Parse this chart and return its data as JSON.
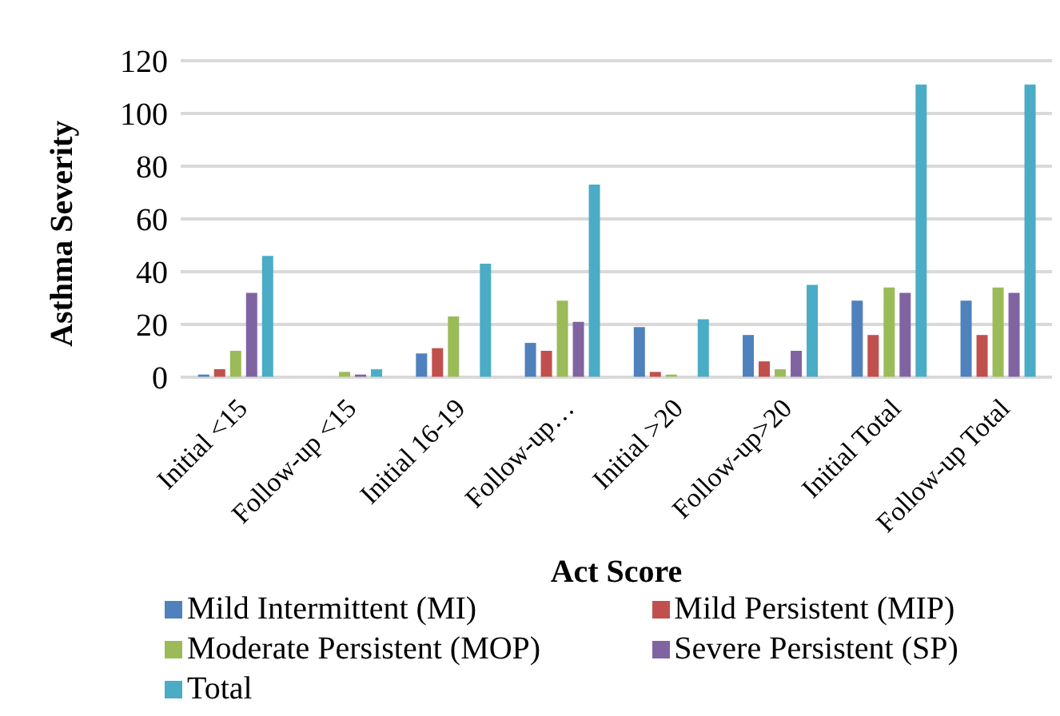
{
  "chart_data": {
    "type": "bar",
    "xlabel": "Act Score",
    "ylabel": "Asthma Severity",
    "categories": [
      "Initial <15",
      "Follow-up <15",
      "Initial 16-19",
      "Follow-up…",
      "Initial  >20",
      "Follow-up>20",
      "Initial Total",
      "Follow-up Total"
    ],
    "series": [
      {
        "name": "Mild Intermittent (MI)",
        "color": "#4f81bd",
        "values": [
          1,
          0,
          9,
          13,
          19,
          16,
          29,
          29
        ]
      },
      {
        "name": "Mild Persistent (MIP)",
        "color": "#c0504d",
        "values": [
          3,
          0,
          11,
          10,
          2,
          6,
          16,
          16
        ]
      },
      {
        "name": "Moderate Persistent (MOP)",
        "color": "#9bbb59",
        "values": [
          10,
          2,
          23,
          29,
          1,
          3,
          34,
          34
        ]
      },
      {
        "name": "Severe Persistent (SP)",
        "color": "#8064a2",
        "values": [
          32,
          1,
          0,
          21,
          0,
          10,
          32,
          32
        ]
      },
      {
        "name": "Total",
        "color": "#4bacc6",
        "values": [
          46,
          3,
          43,
          73,
          22,
          35,
          111,
          111
        ]
      }
    ],
    "ylim": [
      0,
      120
    ],
    "yticks": [
      0,
      20,
      40,
      60,
      80,
      100,
      120
    ],
    "grid": "y",
    "legend": "bottom"
  }
}
